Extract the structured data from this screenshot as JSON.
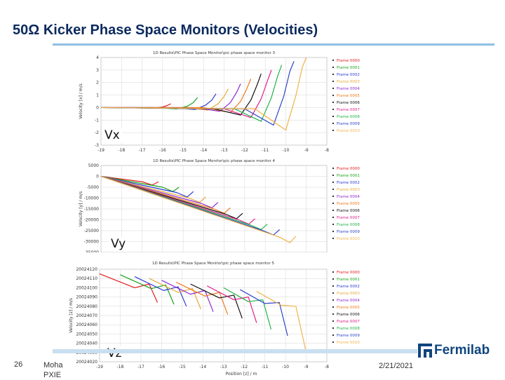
{
  "slide": {
    "title": "50Ω  Kicker Phase Space Monitors (Velocities)",
    "page_number": "26",
    "author": "Moha\nPXIE",
    "date": "2/21/2021",
    "logo_text": "Fermilab"
  },
  "colors": {
    "title": "#0a2a5e",
    "title_rule": "#8fbfe3",
    "logo": "#10457d"
  },
  "frame_colors": [
    "#e11d1d",
    "#19a319",
    "#2c3ad6",
    "#e8a93a",
    "#8f2bd0",
    "#f07a1c",
    "#111111",
    "#e0218a",
    "#22b34a",
    "#2e44c8",
    "#f2b24a"
  ],
  "chart_data": [
    {
      "type": "line",
      "plot_label": "Vx",
      "title": "1D Results\\PIC Phase Space Monitor\\pic phase space monitor 3",
      "ylabel": "Velocity [x]  / m/s",
      "xlabel": "",
      "xlim": [
        -19,
        -8
      ],
      "ylim": [
        -3,
        4
      ],
      "xticks": [
        "-19",
        "-18",
        "-17",
        "-16",
        "-15",
        "-14",
        "-13",
        "-12",
        "-11",
        "-10",
        "-9",
        "-8"
      ],
      "yticks": [
        "4",
        "3",
        "2",
        "1",
        "0",
        "-1",
        "-2",
        "-3"
      ],
      "legend": [
        "Frame 0000",
        "Frame 0001",
        "Frame 0002",
        "Frame 0003",
        "Frame 0004",
        "Frame 0005",
        "Frame 0006",
        "Frame 0007",
        "Frame 0008",
        "Frame 0009",
        "Frame 0010"
      ],
      "grid": true,
      "series": [
        {
          "name": "Frame 0000",
          "x": [
            -19,
            -17.5,
            -16.5,
            -16.0,
            -15.8,
            -15.6
          ],
          "y": [
            0,
            0,
            -0.05,
            0.05,
            0.15,
            0.3
          ]
        },
        {
          "name": "Frame 0001",
          "x": [
            -19,
            -16.5,
            -15.3,
            -14.8,
            -14.5,
            -14.3
          ],
          "y": [
            0,
            0,
            -0.1,
            0.1,
            0.4,
            0.8
          ]
        },
        {
          "name": "Frame 0002",
          "x": [
            -19,
            -15.5,
            -14.4,
            -13.9,
            -13.6,
            -13.4
          ],
          "y": [
            0,
            0,
            -0.15,
            0.2,
            0.6,
            1.1
          ]
        },
        {
          "name": "Frame 0003",
          "x": [
            -19,
            -15,
            -13.8,
            -13.3,
            -13.0,
            -12.8
          ],
          "y": [
            0,
            0,
            -0.2,
            0.3,
            0.9,
            1.5
          ]
        },
        {
          "name": "Frame 0004",
          "x": [
            -19,
            -14.5,
            -13.2,
            -12.7,
            -12.4,
            -12.2
          ],
          "y": [
            0,
            0,
            -0.3,
            0.4,
            1.2,
            1.9
          ]
        },
        {
          "name": "Frame 0005",
          "x": [
            -19,
            -14,
            -12.7,
            -12.2,
            -11.9,
            -11.7
          ],
          "y": [
            0,
            0,
            -0.4,
            0.5,
            1.5,
            2.3
          ]
        },
        {
          "name": "Frame 0006",
          "x": [
            -19,
            -13.5,
            -12.2,
            -11.7,
            -11.4,
            -11.2
          ],
          "y": [
            0,
            -0.1,
            -0.6,
            0.6,
            1.8,
            2.7
          ]
        },
        {
          "name": "Frame 0007",
          "x": [
            -19,
            -13,
            -11.7,
            -11.2,
            -10.9,
            -10.7
          ],
          "y": [
            0,
            -0.1,
            -0.8,
            0.7,
            2.1,
            3.0
          ]
        },
        {
          "name": "Frame 0008",
          "x": [
            -19,
            -12.5,
            -11.2,
            -10.7,
            -10.4,
            -10.2
          ],
          "y": [
            0,
            -0.1,
            -1.1,
            0.8,
            2.5,
            3.4
          ]
        },
        {
          "name": "Frame 0009",
          "x": [
            -19,
            -12,
            -10.6,
            -10.1,
            -9.8,
            -9.6
          ],
          "y": [
            0,
            -0.1,
            -1.4,
            0.9,
            2.9,
            3.7
          ]
        },
        {
          "name": "Frame 0010",
          "x": [
            -19,
            -11.5,
            -10.0,
            -9.5,
            -9.2,
            -9.0
          ],
          "y": [
            0,
            -0.1,
            -1.8,
            1.0,
            3.2,
            4.0
          ]
        }
      ]
    },
    {
      "type": "line",
      "plot_label": "Vy",
      "title": "1D Results\\PIC Phase Space Monitor\\pic phase space monitor 4",
      "ylabel": "Velocity [y]  / m/s",
      "xlabel": "",
      "xlim": [
        -19,
        -8
      ],
      "ylim": [
        -35000,
        5000
      ],
      "xticks": [],
      "yticks": [
        "5000",
        "0",
        "-5000",
        "-10000",
        "-15000",
        "-20000",
        "-25000",
        "-30000",
        "-35000"
      ],
      "legend": [
        "Frame 0000",
        "Frame 0001",
        "Frame 0002",
        "Frame 0003",
        "Frame 0004",
        "Frame 0005",
        "Frame 0006",
        "Frame 0007",
        "Frame 0008",
        "Frame 0009",
        "Frame 0010"
      ],
      "grid": true,
      "series": [
        {
          "name": "Frame 0000",
          "x": [
            -19,
            -17.0,
            -16.5,
            -16.2
          ],
          "y": [
            0,
            -2500,
            -4000,
            -2500
          ]
        },
        {
          "name": "Frame 0001",
          "x": [
            -19,
            -16.0,
            -15.5,
            -15.2
          ],
          "y": [
            0,
            -5000,
            -7000,
            -5000
          ]
        },
        {
          "name": "Frame 0002",
          "x": [
            -19,
            -15.3,
            -14.8,
            -14.5
          ],
          "y": [
            0,
            -7500,
            -9500,
            -7000
          ]
        },
        {
          "name": "Frame 0003",
          "x": [
            -19,
            -14.7,
            -14.2,
            -13.9
          ],
          "y": [
            0,
            -10000,
            -12000,
            -9500
          ]
        },
        {
          "name": "Frame 0004",
          "x": [
            -19,
            -14.1,
            -13.6,
            -13.3
          ],
          "y": [
            0,
            -12500,
            -14500,
            -12000
          ]
        },
        {
          "name": "Frame 0005",
          "x": [
            -19,
            -13.5,
            -13.0,
            -12.7
          ],
          "y": [
            0,
            -15000,
            -17000,
            -14500
          ]
        },
        {
          "name": "Frame 0006",
          "x": [
            -19,
            -12.9,
            -12.4,
            -12.1
          ],
          "y": [
            0,
            -17500,
            -19500,
            -17000
          ]
        },
        {
          "name": "Frame 0007",
          "x": [
            -19,
            -12.3,
            -11.8,
            -11.5
          ],
          "y": [
            0,
            -20000,
            -22000,
            -19500
          ]
        },
        {
          "name": "Frame 0008",
          "x": [
            -19,
            -11.7,
            -11.2,
            -10.9
          ],
          "y": [
            0,
            -22500,
            -24500,
            -22000
          ]
        },
        {
          "name": "Frame 0009",
          "x": [
            -19,
            -11.1,
            -10.6,
            -10.3
          ],
          "y": [
            0,
            -25000,
            -27000,
            -24500
          ]
        },
        {
          "name": "Frame 0010",
          "x": [
            -19,
            -10.3,
            -9.8,
            -9.5
          ],
          "y": [
            0,
            -28000,
            -30500,
            -27500
          ]
        }
      ]
    },
    {
      "type": "line",
      "plot_label": "Vz",
      "title": "1D Results\\PIC Phase Space Monitor\\pic phase space monitor 5",
      "ylabel": "Velocity [z]  / m/s",
      "xlabel": "Position [z]  / m",
      "xlim": [
        -19,
        -8
      ],
      "ylim": [
        20024020,
        20024120
      ],
      "xticks": [
        "-19",
        "-18",
        "-17",
        "-16",
        "-15",
        "-14",
        "-13",
        "-12",
        "-11",
        "-10",
        "-9",
        "-8"
      ],
      "yticks": [
        "20024120",
        "20024110",
        "20024100",
        "20024090",
        "20024080",
        "20024070",
        "20024060",
        "20024050",
        "20024040",
        "20024030",
        "20024020"
      ],
      "legend": [
        "Frame 0000",
        "Frame 0001",
        "Frame 0002",
        "Frame 0003",
        "Frame 0004",
        "Frame 0005",
        "Frame 0006",
        "Frame 0007",
        "Frame 0008",
        "Frame 0009",
        "Frame 0010"
      ],
      "grid": true,
      "series": [
        {
          "name": "Frame 0000",
          "x": [
            -19,
            -17.3,
            -16.6,
            -16.2
          ],
          "y": [
            20024115,
            20024100,
            20024104,
            20024084
          ]
        },
        {
          "name": "Frame 0001",
          "x": [
            -18,
            -16.5,
            -15.8,
            -15.4
          ],
          "y": [
            20024114,
            20024099,
            20024103,
            20024082
          ]
        },
        {
          "name": "Frame 0002",
          "x": [
            -17.3,
            -15.9,
            -15.2,
            -14.8
          ],
          "y": [
            20024112,
            20024097,
            20024101,
            20024080
          ]
        },
        {
          "name": "Frame 0003",
          "x": [
            -16.6,
            -15.2,
            -14.5,
            -14.1
          ],
          "y": [
            20024110,
            20024095,
            20024099,
            20024077
          ]
        },
        {
          "name": "Frame 0004",
          "x": [
            -16.0,
            -14.6,
            -13.9,
            -13.5
          ],
          "y": [
            20024108,
            20024093,
            20024097,
            20024074
          ]
        },
        {
          "name": "Frame 0005",
          "x": [
            -15.3,
            -13.9,
            -13.2,
            -12.8
          ],
          "y": [
            20024106,
            20024091,
            20024095,
            20024071
          ]
        },
        {
          "name": "Frame 0006",
          "x": [
            -14.6,
            -13.2,
            -12.5,
            -12.1
          ],
          "y": [
            20024104,
            20024089,
            20024092,
            20024067
          ]
        },
        {
          "name": "Frame 0007",
          "x": [
            -13.8,
            -12.5,
            -11.8,
            -11.4
          ],
          "y": [
            20024102,
            20024087,
            20024090,
            20024062
          ]
        },
        {
          "name": "Frame 0008",
          "x": [
            -13.0,
            -11.8,
            -11.1,
            -10.7
          ],
          "y": [
            20024100,
            20024085,
            20024087,
            20024055
          ]
        },
        {
          "name": "Frame 0009",
          "x": [
            -12.2,
            -11.0,
            -10.3,
            -9.9
          ],
          "y": [
            20024098,
            20024083,
            20024084,
            20024048
          ]
        },
        {
          "name": "Frame 0010",
          "x": [
            -11.4,
            -10.2,
            -9.5,
            -9.0
          ],
          "y": [
            20024096,
            20024081,
            20024080,
            20024030
          ]
        }
      ]
    }
  ]
}
